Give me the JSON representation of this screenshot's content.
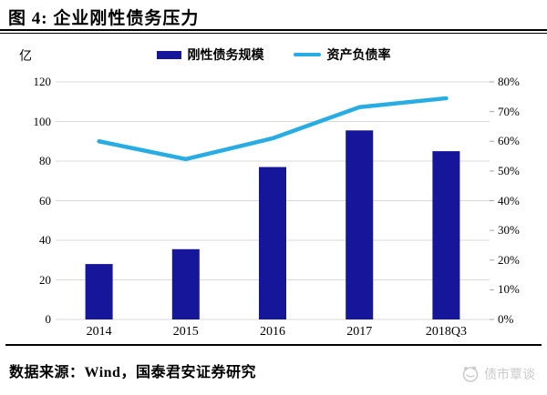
{
  "figure": {
    "title": "图 4: 企业刚性债务压力",
    "source": "数据来源：Wind，国泰君安证券研究",
    "watermark": "债市覃谈"
  },
  "chart_data": {
    "type": "bar",
    "subtype": "combo-bar-line",
    "title": "企业刚性债务压力",
    "categories": [
      "2014",
      "2015",
      "2016",
      "2017",
      "2018Q3"
    ],
    "series": [
      {
        "name": "刚性债务规模",
        "type": "bar",
        "axis": "left",
        "unit": "亿",
        "color": "#16169b",
        "values": [
          28,
          35.5,
          77,
          95.5,
          85
        ]
      },
      {
        "name": "资产负债率",
        "type": "line",
        "axis": "right",
        "unit": "%",
        "color": "#27ace4",
        "values": [
          60,
          54,
          61,
          71.5,
          74.5
        ]
      }
    ],
    "left_axis": {
      "title": "亿",
      "min": 0,
      "max": 120,
      "step": 20,
      "tick_labels": [
        "0",
        "20",
        "40",
        "60",
        "80",
        "100",
        "120"
      ]
    },
    "right_axis": {
      "min": 0,
      "max": 80,
      "step": 10,
      "tick_labels": [
        "0%",
        "10%",
        "20%",
        "30%",
        "40%",
        "50%",
        "60%",
        "70%",
        "80%"
      ]
    },
    "grid": true,
    "gridline_color": "#d9d9d9",
    "legend_position": "top"
  }
}
